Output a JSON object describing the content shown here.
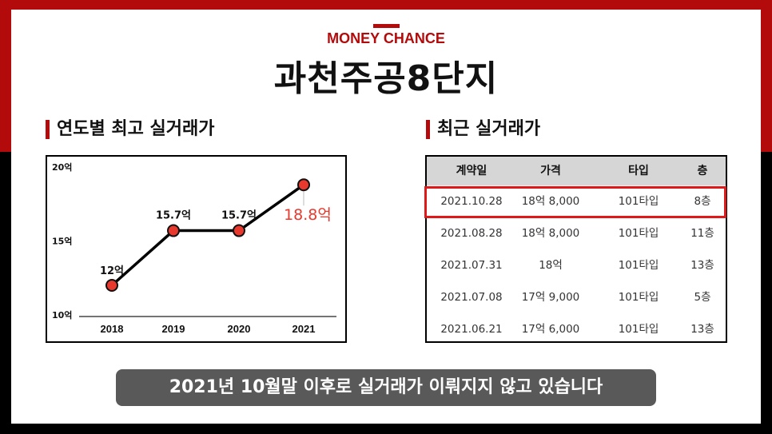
{
  "brand": "MONEY CHANCE",
  "title": "과천주공8단지",
  "left_section": {
    "title": "연도별 최고 실거래가"
  },
  "right_section": {
    "title": "최근 실거래가"
  },
  "chart_data": {
    "type": "line",
    "title": "",
    "categories": [
      "2018",
      "2019",
      "2020",
      "2021"
    ],
    "series": [
      {
        "values": [
          12,
          15.7,
          15.7,
          18.8
        ]
      }
    ],
    "data_labels": [
      "12억",
      "15.7억",
      "15.7억",
      "18.8억"
    ],
    "y_ticks": [
      "10억",
      "15억",
      "20억"
    ],
    "ylim": [
      10,
      20
    ],
    "grid": false,
    "colors": {
      "line": "#000000",
      "marker": "#e8392e",
      "highlight_label": "#e8392e"
    }
  },
  "table": {
    "headers": [
      "계약일",
      "가격",
      "타입",
      "층"
    ],
    "rows": [
      [
        "2021.10.28",
        "18억 8,000",
        "101타입",
        "8층"
      ],
      [
        "2021.08.28",
        "18억 8,000",
        "101타입",
        "11층"
      ],
      [
        "2021.07.31",
        "18억",
        "101타입",
        "13층"
      ],
      [
        "2021.07.08",
        "17억 9,000",
        "101타입",
        "5층"
      ],
      [
        "2021.06.21",
        "17억 6,000",
        "101타입",
        "13층"
      ]
    ],
    "highlight_color": "#e01818"
  },
  "banner": "2021년 10월말 이후로 실거래가 이뤄지지 않고 있습니다",
  "colors": {
    "accent": "#b30b0b",
    "banner_bg": "#595959"
  }
}
